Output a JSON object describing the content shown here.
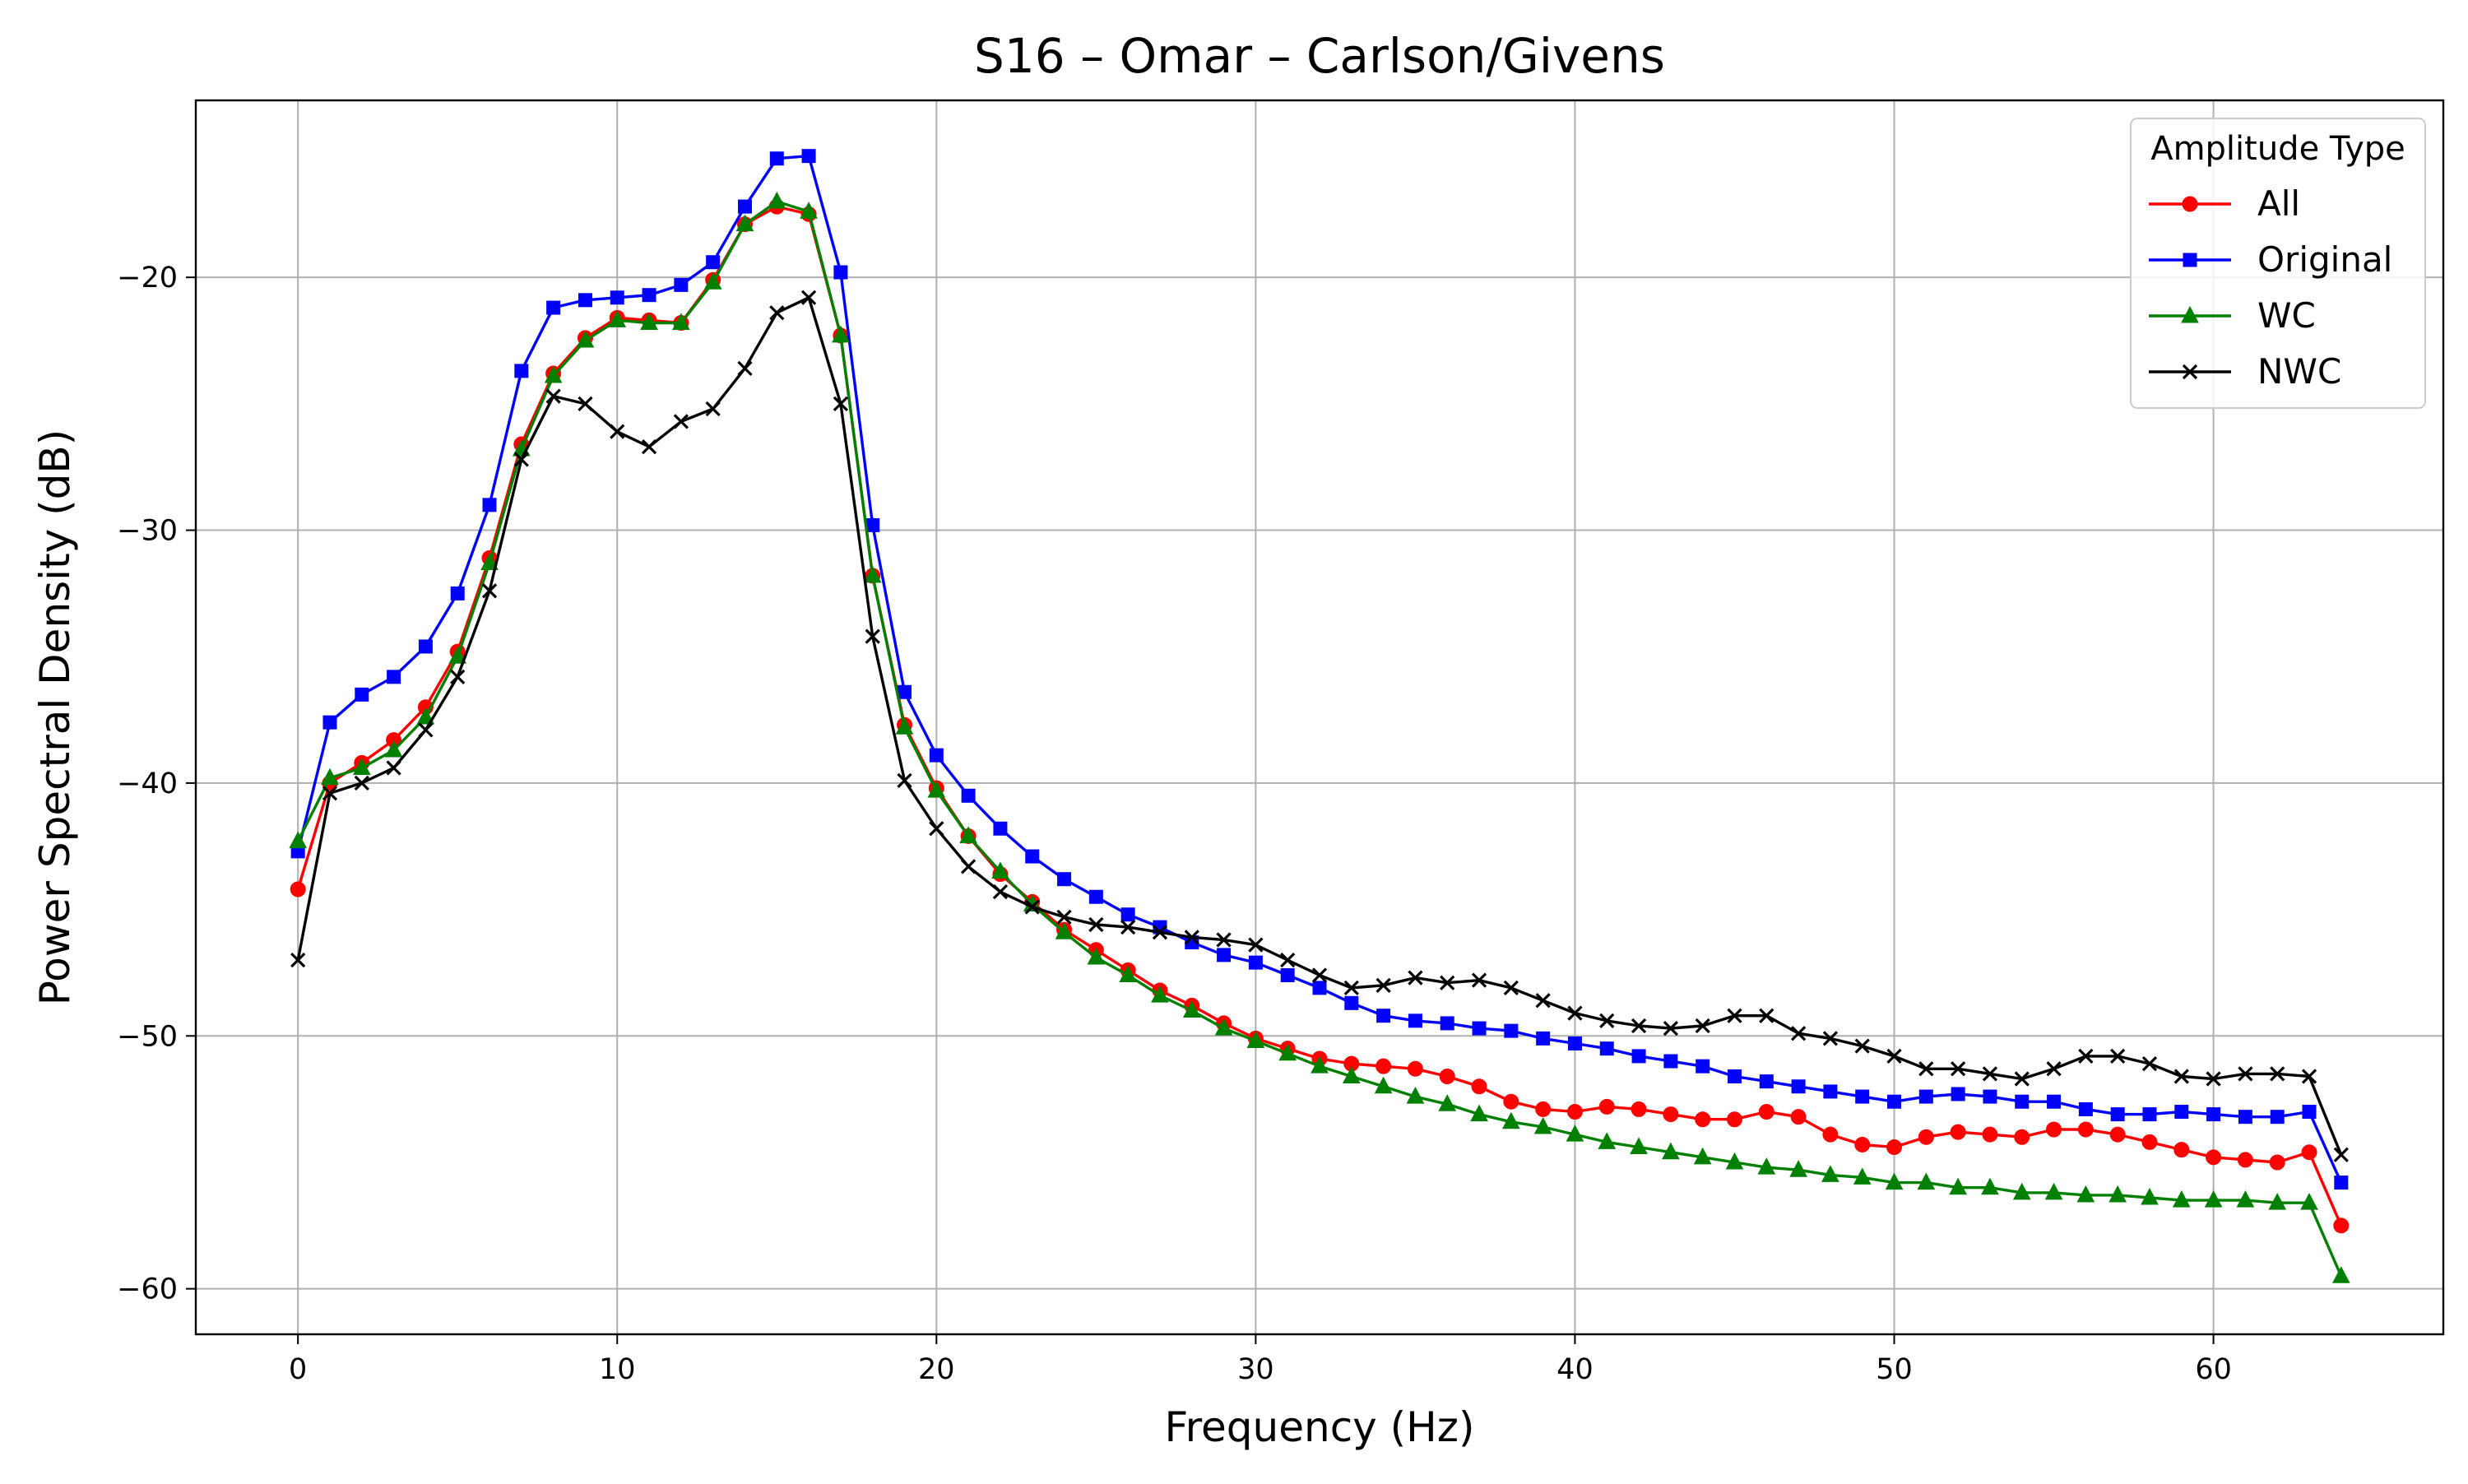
{
  "chart_data": {
    "type": "line",
    "title": "S16 – Omar – Carlson/Givens",
    "xlabel": "Frequency (Hz)",
    "ylabel": "Power Spectral Density (dB)",
    "xlim": [
      -3.2,
      67.2
    ],
    "ylim": [
      -61.8,
      -13.0
    ],
    "xticks": [
      0,
      10,
      20,
      30,
      40,
      50,
      60
    ],
    "yticks": [
      -60,
      -50,
      -40,
      -30,
      -20
    ],
    "ytick_labels": [
      "−60",
      "−50",
      "−40",
      "−30",
      "−20"
    ],
    "grid": true,
    "legend": {
      "title": "Amplitude Type",
      "position": "top-right"
    },
    "x": [
      0,
      1,
      2,
      3,
      4,
      5,
      6,
      7,
      8,
      9,
      10,
      11,
      12,
      13,
      14,
      15,
      16,
      17,
      18,
      19,
      20,
      21,
      22,
      23,
      24,
      25,
      26,
      27,
      28,
      29,
      30,
      31,
      32,
      33,
      34,
      35,
      36,
      37,
      38,
      39,
      40,
      41,
      42,
      43,
      44,
      45,
      46,
      47,
      48,
      49,
      50,
      51,
      52,
      53,
      54,
      55,
      56,
      57,
      58,
      59,
      60,
      61,
      62,
      63,
      64
    ],
    "series": [
      {
        "name": "All",
        "color": "#ff0000",
        "marker": "circle",
        "values": [
          -44.2,
          -40.0,
          -39.2,
          -38.3,
          -37.0,
          -34.8,
          -31.1,
          -26.6,
          -23.8,
          -22.4,
          -21.6,
          -21.7,
          -21.8,
          -20.1,
          -17.9,
          -17.2,
          -17.5,
          -22.3,
          -31.8,
          -37.7,
          -40.2,
          -42.1,
          -43.6,
          -44.7,
          -45.8,
          -46.6,
          -47.4,
          -48.2,
          -48.8,
          -49.5,
          -50.1,
          -50.5,
          -50.9,
          -51.1,
          -51.2,
          -51.3,
          -51.6,
          -52.0,
          -52.6,
          -52.9,
          -53.0,
          -52.8,
          -52.9,
          -53.1,
          -53.3,
          -53.3,
          -53.0,
          -53.2,
          -53.9,
          -54.3,
          -54.4,
          -54.0,
          -53.8,
          -53.9,
          -54.0,
          -53.7,
          -53.7,
          -53.9,
          -54.2,
          -54.5,
          -54.8,
          -54.9,
          -55.0,
          -54.6,
          -57.5
        ]
      },
      {
        "name": "Original",
        "color": "#0000ff",
        "marker": "square",
        "values": [
          -42.7,
          -37.6,
          -36.5,
          -35.8,
          -34.6,
          -32.5,
          -29.0,
          -23.7,
          -21.2,
          -20.9,
          -20.8,
          -20.7,
          -20.3,
          -19.4,
          -17.2,
          -15.3,
          -15.2,
          -19.8,
          -29.8,
          -36.4,
          -38.9,
          -40.5,
          -41.8,
          -42.9,
          -43.8,
          -44.5,
          -45.2,
          -45.7,
          -46.3,
          -46.8,
          -47.1,
          -47.6,
          -48.1,
          -48.7,
          -49.2,
          -49.4,
          -49.5,
          -49.7,
          -49.8,
          -50.1,
          -50.3,
          -50.5,
          -50.8,
          -51.0,
          -51.2,
          -51.6,
          -51.8,
          -52.0,
          -52.2,
          -52.4,
          -52.6,
          -52.4,
          -52.3,
          -52.4,
          -52.6,
          -52.6,
          -52.9,
          -53.1,
          -53.1,
          -53.0,
          -53.1,
          -53.2,
          -53.2,
          -53.0,
          -55.8
        ]
      },
      {
        "name": "WC",
        "color": "#008000",
        "marker": "triangle",
        "values": [
          -42.3,
          -39.8,
          -39.4,
          -38.7,
          -37.4,
          -35.0,
          -31.3,
          -26.8,
          -23.9,
          -22.5,
          -21.7,
          -21.8,
          -21.8,
          -20.2,
          -17.9,
          -17.0,
          -17.4,
          -22.3,
          -31.8,
          -37.8,
          -40.3,
          -42.1,
          -43.5,
          -44.8,
          -45.9,
          -46.9,
          -47.6,
          -48.4,
          -49.0,
          -49.7,
          -50.2,
          -50.7,
          -51.2,
          -51.6,
          -52.0,
          -52.4,
          -52.7,
          -53.1,
          -53.4,
          -53.6,
          -53.9,
          -54.2,
          -54.4,
          -54.6,
          -54.8,
          -55.0,
          -55.2,
          -55.3,
          -55.5,
          -55.6,
          -55.8,
          -55.8,
          -56.0,
          -56.0,
          -56.2,
          -56.2,
          -56.3,
          -56.3,
          -56.4,
          -56.5,
          -56.5,
          -56.5,
          -56.6,
          -56.6,
          -59.5
        ]
      },
      {
        "name": "NWC",
        "color": "#000000",
        "marker": "x",
        "values": [
          -47.0,
          -40.4,
          -40.0,
          -39.4,
          -37.9,
          -35.8,
          -32.4,
          -27.2,
          -24.7,
          -25.0,
          -26.1,
          -26.7,
          -25.7,
          -25.2,
          -23.6,
          -21.4,
          -20.8,
          -25.0,
          -34.2,
          -39.9,
          -41.8,
          -43.3,
          -44.3,
          -44.9,
          -45.3,
          -45.6,
          -45.7,
          -45.9,
          -46.1,
          -46.2,
          -46.4,
          -47.0,
          -47.6,
          -48.1,
          -48.0,
          -47.7,
          -47.9,
          -47.8,
          -48.1,
          -48.6,
          -49.1,
          -49.4,
          -49.6,
          -49.7,
          -49.6,
          -49.2,
          -49.2,
          -49.9,
          -50.1,
          -50.4,
          -50.8,
          -51.3,
          -51.3,
          -51.5,
          -51.7,
          -51.3,
          -50.8,
          -50.8,
          -51.1,
          -51.6,
          -51.7,
          -51.5,
          -51.5,
          -51.6,
          -54.7
        ]
      }
    ]
  }
}
